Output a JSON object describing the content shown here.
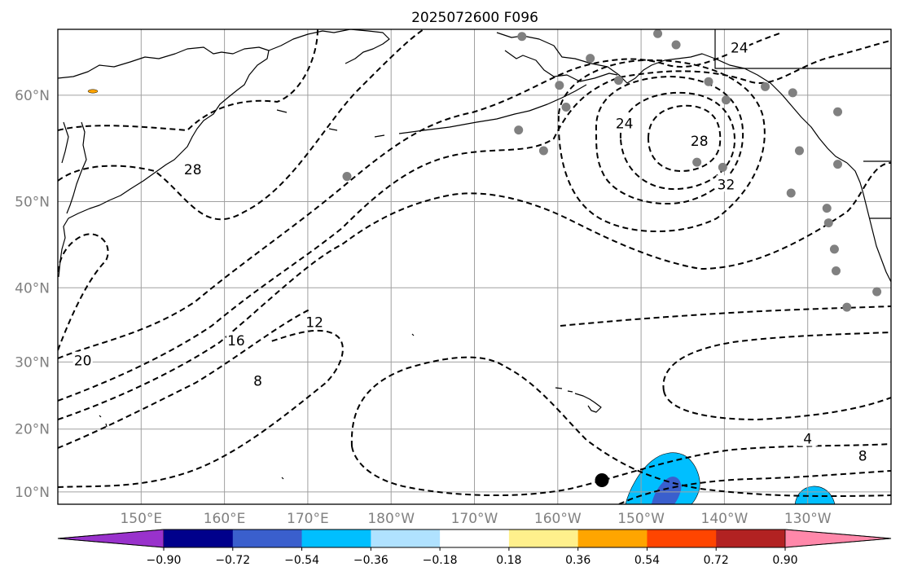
{
  "figure": {
    "title": "2025072600 F096"
  },
  "map": {
    "extent": {
      "lon_west": 140,
      "lon_east": 240,
      "lat_south": 8,
      "lat_north": 65
    },
    "lat_ticks": [
      {
        "lat": 10,
        "label": "10°N"
      },
      {
        "lat": 20,
        "label": "20°N"
      },
      {
        "lat": 30,
        "label": "30°N"
      },
      {
        "lat": 40,
        "label": "40°N"
      },
      {
        "lat": 50,
        "label": "50°N"
      },
      {
        "lat": 60,
        "label": "60°N"
      }
    ],
    "lon_ticks": [
      {
        "lon": 150,
        "label": "150°E"
      },
      {
        "lon": 160,
        "label": "160°E"
      },
      {
        "lon": 170,
        "label": "170°E"
      },
      {
        "lon": 180,
        "label": "180°W"
      },
      {
        "lon": 190,
        "label": "170°W"
      },
      {
        "lon": 200,
        "label": "160°W"
      },
      {
        "lon": 210,
        "label": "150°W"
      },
      {
        "lon": 220,
        "label": "140°W"
      },
      {
        "lon": 230,
        "label": "130°W"
      }
    ],
    "gridlines": true,
    "contour_labels": [
      {
        "text": "28",
        "lon": 156.2,
        "lat": 53.3
      },
      {
        "text": "24",
        "lon": 221.8,
        "lat": 63.7
      },
      {
        "text": "28",
        "lon": 217.0,
        "lat": 56.0
      },
      {
        "text": "32",
        "lon": 220.2,
        "lat": 51.8
      },
      {
        "text": "24",
        "lon": 208.0,
        "lat": 57.6
      },
      {
        "text": "20",
        "lon": 143.0,
        "lat": 30.2
      },
      {
        "text": "16",
        "lon": 161.4,
        "lat": 33.0
      },
      {
        "text": "12",
        "lon": 170.8,
        "lat": 35.5
      },
      {
        "text": "8",
        "lon": 164.0,
        "lat": 27.3
      },
      {
        "text": "4",
        "lon": 230.0,
        "lat": 18.5
      },
      {
        "text": "8",
        "lon": 236.6,
        "lat": 15.8
      }
    ],
    "stations": [
      [
        195.7,
        64.5
      ],
      [
        200.2,
        60.8
      ],
      [
        203.9,
        62.9
      ],
      [
        201.0,
        59.0
      ],
      [
        207.3,
        61.2
      ],
      [
        212.0,
        64.7
      ],
      [
        214.2,
        63.9
      ],
      [
        218.1,
        61.1
      ],
      [
        220.2,
        59.6
      ],
      [
        219.8,
        53.5
      ],
      [
        224.9,
        60.7
      ],
      [
        228.2,
        60.2
      ],
      [
        233.6,
        58.6
      ],
      [
        233.6,
        53.8
      ],
      [
        229.0,
        55.1
      ],
      [
        228.0,
        50.9
      ],
      [
        232.3,
        49.3
      ],
      [
        232.5,
        47.7
      ],
      [
        233.2,
        44.7
      ],
      [
        233.4,
        42.1
      ],
      [
        234.7,
        37.5
      ],
      [
        238.3,
        39.5
      ],
      [
        198.3,
        55.1
      ],
      [
        195.3,
        57.0
      ],
      [
        174.7,
        52.6
      ],
      [
        216.7,
        54.0
      ]
    ],
    "current_position": {
      "lon": 205.3,
      "lat": 11.9
    }
  },
  "colorbar": {
    "levels": [
      -0.9,
      -0.72,
      -0.54,
      -0.36,
      -0.18,
      0.18,
      0.36,
      0.54,
      0.72,
      0.9
    ],
    "tick_labels": [
      "−0.90",
      "−0.72",
      "−0.54",
      "−0.36",
      "−0.18",
      "0.18",
      "0.36",
      "0.54",
      "0.72",
      "0.90"
    ],
    "under_color": "#9932cc",
    "over_color": "#ff88aa",
    "colors": [
      "#9932cc",
      "#00008b",
      "#3a5fcd",
      "#00bfff",
      "#b0e2ff",
      "#ffffff",
      "#fff08c",
      "#ffa500",
      "#ff4500",
      "#b22222",
      "#ff88aa"
    ]
  },
  "shading": {
    "colors": {
      "light_blue": "#00bfff",
      "mid_blue": "#3a5fcd",
      "orange_spot": "#ffa500"
    }
  }
}
